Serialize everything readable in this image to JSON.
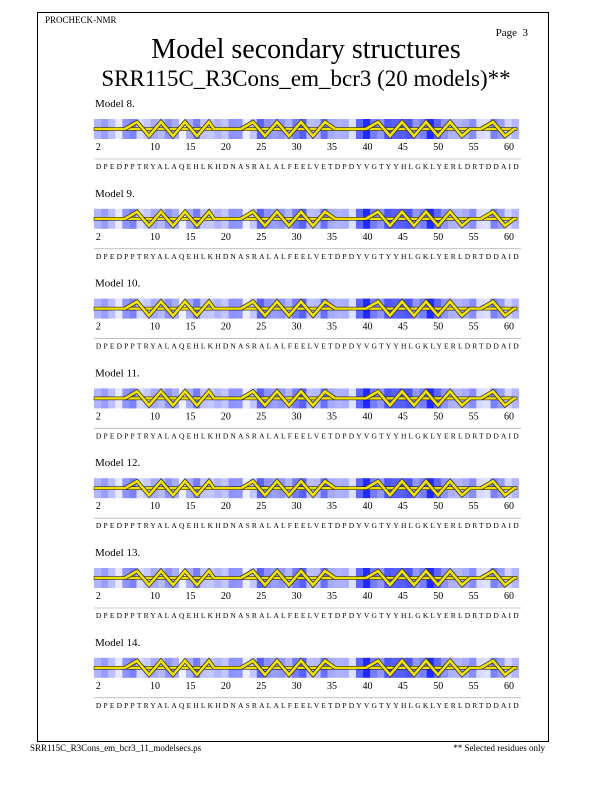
{
  "header": {
    "program": "PROCHECK-NMR",
    "page": "Page  3"
  },
  "title": "Model secondary structures",
  "subtitle": "SRR115C_R3Cons_em_bcr3 (20 models)**",
  "models": [
    {
      "label": "Model  8.",
      "residue_ticks": [
        2,
        10,
        15,
        20,
        25,
        30,
        35,
        40,
        45,
        50,
        55,
        60
      ],
      "sequence": "DPEDPPTRYALAQEHLKHDNASRALALFEELVETDPDYVGTYYHLGKLYERLDRTDDAID"
    },
    {
      "label": "Model  9.",
      "residue_ticks": [
        2,
        10,
        15,
        20,
        25,
        30,
        35,
        40,
        45,
        50,
        55,
        60
      ],
      "sequence": "DPEDPPTRYALAQEHLKHDNASRALALFEELVETDPDYVGTYYHLGKLYERLDRTDDAID"
    },
    {
      "label": "Model 10.",
      "residue_ticks": [
        2,
        10,
        15,
        20,
        25,
        30,
        35,
        40,
        45,
        50,
        55,
        60
      ],
      "sequence": "DPEDPPTRYALAQEHLKHDNASRALALFEELVETDPDYVGTYYHLGKLYERLDRTDDAID"
    },
    {
      "label": "Model 11.",
      "residue_ticks": [
        2,
        10,
        15,
        20,
        25,
        30,
        35,
        40,
        45,
        50,
        55,
        60
      ],
      "sequence": "DPEDPPTRYALAQEHLKHDNASRALALFEELVETDPDYVGTYYHLGKLYERLDRTDDAID"
    },
    {
      "label": "Model 12.",
      "residue_ticks": [
        2,
        10,
        15,
        20,
        25,
        30,
        35,
        40,
        45,
        50,
        55,
        60
      ],
      "sequence": "DPEDPPTRYALAQEHLKHDNASRALALFEELVETDPDYVGTYYHLGKLYERLDRTDDAID"
    },
    {
      "label": "Model 13.",
      "residue_ticks": [
        2,
        10,
        15,
        20,
        25,
        30,
        35,
        40,
        45,
        50,
        55,
        60
      ],
      "sequence": "DPEDPPTRYALAQEHLKHDNASRALALFEELVETDPDYVGTYYHLGKLYERLDRTDDAID"
    },
    {
      "label": "Model 14.",
      "residue_ticks": [
        2,
        10,
        15,
        20,
        25,
        30,
        35,
        40,
        45,
        50,
        55,
        60
      ],
      "sequence": "DPEDPPTRYALAQEHLKHDNASRALALFEELVETDPDYVGTYYHLGKLYERLDRTDDAID"
    }
  ],
  "footer": {
    "filename": "SRR115C_R3Cons_em_bcr3_11_modelsecs.ps",
    "note": "** Selected residues only"
  }
}
